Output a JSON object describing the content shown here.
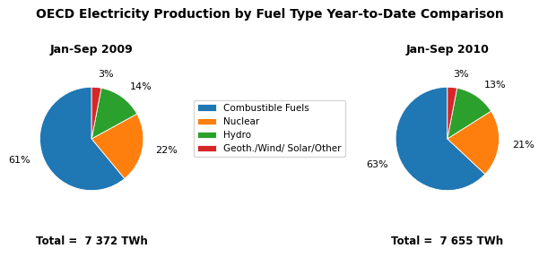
{
  "title": "OECD Electricity Production by Fuel Type Year-to-Date Comparison",
  "chart_data": [
    {
      "type": "pie",
      "title": "Jan-Sep 2009",
      "categories": [
        "Combustible Fuels",
        "Nuclear",
        "Hydro",
        "Geoth./Wind/ Solar/Other"
      ],
      "values": [
        61,
        22,
        14,
        3
      ],
      "value_labels": [
        "61%",
        "22%",
        "14%",
        "3%"
      ],
      "data_labels": true,
      "legend": "center",
      "annotations": [
        "Total =  7 372 TWh"
      ]
    },
    {
      "type": "pie",
      "title": "Jan-Sep 2010",
      "categories": [
        "Combustible Fuels",
        "Nuclear",
        "Hydro",
        "Geoth./Wind/ Solar/Other"
      ],
      "values": [
        63,
        21,
        13,
        3
      ],
      "value_labels": [
        "63%",
        "21%",
        "13%",
        "3%"
      ],
      "data_labels": true,
      "legend": "center",
      "annotations": [
        "Total =  7 655 TWh"
      ]
    }
  ]
}
